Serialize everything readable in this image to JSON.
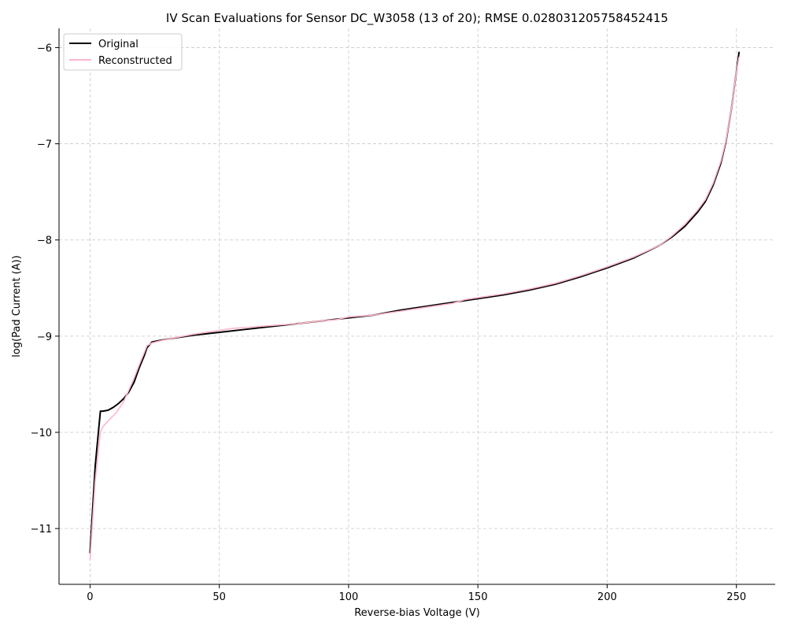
{
  "chart_data": {
    "type": "line",
    "title": "IV Scan Evaluations for Sensor DC_W3058 (13 of 20); RMSE 0.028031205758452415",
    "xlabel": "Reverse-bias Voltage (V)",
    "ylabel": "log(Pad Current (A))",
    "xlim": [
      -12,
      265
    ],
    "ylim": [
      -11.58,
      -5.8
    ],
    "xticks": [
      0,
      50,
      100,
      150,
      200,
      250
    ],
    "yticks": [
      -11,
      -10,
      -9,
      -8,
      -7,
      -6
    ],
    "xtick_labels": [
      "0",
      "50",
      "100",
      "150",
      "200",
      "250"
    ],
    "ytick_labels": [
      "−11",
      "−10",
      "−9",
      "−8",
      "−7",
      "−6"
    ],
    "grid": true,
    "legend_position": "upper-left",
    "series": [
      {
        "name": "Original",
        "color": "#000000",
        "x": [
          0,
          2,
          4,
          5,
          7,
          9,
          11,
          13,
          15,
          17,
          19,
          21,
          22,
          24,
          30,
          40,
          50,
          60,
          70,
          80,
          90,
          100,
          110,
          120,
          130,
          140,
          150,
          160,
          170,
          180,
          190,
          200,
          210,
          220,
          225,
          230,
          235,
          238,
          241,
          244,
          246,
          248,
          250,
          251
        ],
        "y": [
          -11.25,
          -10.35,
          -9.78,
          -9.78,
          -9.77,
          -9.74,
          -9.7,
          -9.65,
          -9.58,
          -9.48,
          -9.33,
          -9.2,
          -9.12,
          -9.06,
          -9.03,
          -8.99,
          -8.96,
          -8.93,
          -8.9,
          -8.87,
          -8.84,
          -8.81,
          -8.78,
          -8.73,
          -8.69,
          -8.65,
          -8.61,
          -8.57,
          -8.52,
          -8.46,
          -8.38,
          -8.29,
          -8.19,
          -8.06,
          -7.97,
          -7.86,
          -7.71,
          -7.6,
          -7.43,
          -7.2,
          -6.97,
          -6.65,
          -6.25,
          -6.05
        ]
      },
      {
        "name": "Reconstructed",
        "color": "#ffb6c8",
        "x": [
          0,
          2,
          4,
          5,
          7,
          10,
          13,
          15,
          17,
          19,
          21,
          22,
          24,
          30,
          40,
          50,
          55,
          60,
          70,
          80,
          90,
          95,
          100,
          110,
          120,
          130,
          140,
          145,
          150,
          160,
          170,
          180,
          190,
          200,
          210,
          220,
          225,
          230,
          235,
          238,
          241,
          244,
          246,
          248,
          250,
          251
        ],
        "y": [
          -11.33,
          -10.5,
          -10.0,
          -9.94,
          -9.88,
          -9.8,
          -9.68,
          -9.56,
          -9.44,
          -9.3,
          -9.17,
          -9.1,
          -9.07,
          -9.03,
          -8.98,
          -8.94,
          -8.92,
          -8.91,
          -8.89,
          -8.87,
          -8.84,
          -8.83,
          -8.8,
          -8.78,
          -8.74,
          -8.7,
          -8.66,
          -8.62,
          -8.6,
          -8.56,
          -8.51,
          -8.45,
          -8.37,
          -8.28,
          -8.18,
          -8.06,
          -7.96,
          -7.84,
          -7.69,
          -7.58,
          -7.41,
          -7.18,
          -6.96,
          -6.65,
          -6.25,
          -6.1
        ]
      }
    ]
  }
}
